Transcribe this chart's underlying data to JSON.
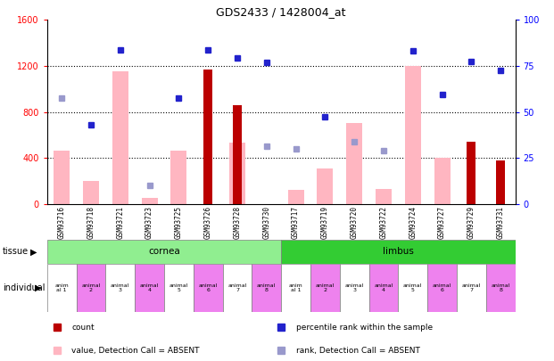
{
  "title": "GDS2433 / 1428004_at",
  "samples": [
    "GSM93716",
    "GSM93718",
    "GSM93721",
    "GSM93723",
    "GSM93725",
    "GSM93726",
    "GSM93728",
    "GSM93730",
    "GSM93717",
    "GSM93719",
    "GSM93720",
    "GSM93722",
    "GSM93724",
    "GSM93727",
    "GSM93729",
    "GSM93731"
  ],
  "count_values": [
    null,
    null,
    null,
    null,
    null,
    1170,
    860,
    null,
    null,
    null,
    null,
    null,
    null,
    null,
    540,
    380
  ],
  "pink_bar_values": [
    460,
    200,
    1150,
    50,
    460,
    null,
    530,
    null,
    120,
    310,
    700,
    130,
    1200,
    400,
    null,
    null
  ],
  "blue_square_values_left": [
    null,
    690,
    1340,
    null,
    920,
    1340,
    1270,
    1230,
    null,
    760,
    null,
    null,
    1330,
    950,
    1240,
    1160
  ],
  "lavender_square_values_left": [
    920,
    null,
    null,
    160,
    null,
    null,
    null,
    500,
    480,
    null,
    540,
    460,
    null,
    null,
    null,
    null
  ],
  "tissue_groups": [
    {
      "label": "cornea",
      "start": 0,
      "end": 8,
      "color": "#90EE90"
    },
    {
      "label": "limbus",
      "start": 8,
      "end": 16,
      "color": "#33CC33"
    }
  ],
  "individual_labels": [
    "anim\nal 1",
    "animal\n2",
    "animal\n3",
    "animal\n4",
    "animal\n5",
    "animal\n6",
    "animal\n7",
    "animal\n8",
    "anim\nal 1",
    "animal\n2",
    "animal\n3",
    "animal\n4",
    "animal\n5",
    "animal\n6",
    "animal\n7",
    "animal\n8"
  ],
  "individual_colors": [
    "#ffffff",
    "#EE82EE",
    "#ffffff",
    "#EE82EE",
    "#ffffff",
    "#EE82EE",
    "#ffffff",
    "#EE82EE",
    "#ffffff",
    "#EE82EE",
    "#ffffff",
    "#EE82EE",
    "#ffffff",
    "#EE82EE",
    "#ffffff",
    "#EE82EE"
  ],
  "ylim_left": [
    0,
    1600
  ],
  "yticks_left": [
    0,
    400,
    800,
    1200,
    1600
  ],
  "yticks_right": [
    0,
    25,
    50,
    75,
    100
  ],
  "count_color": "#BB0000",
  "pink_color": "#FFB6C1",
  "blue_color": "#2222CC",
  "lavender_color": "#9999CC",
  "xtick_bg": "#C8C8C8",
  "legend_items": [
    {
      "label": "count",
      "color": "#BB0000"
    },
    {
      "label": "percentile rank within the sample",
      "color": "#2222CC"
    },
    {
      "label": "value, Detection Call = ABSENT",
      "color": "#FFB6C1"
    },
    {
      "label": "rank, Detection Call = ABSENT",
      "color": "#9999CC"
    }
  ]
}
